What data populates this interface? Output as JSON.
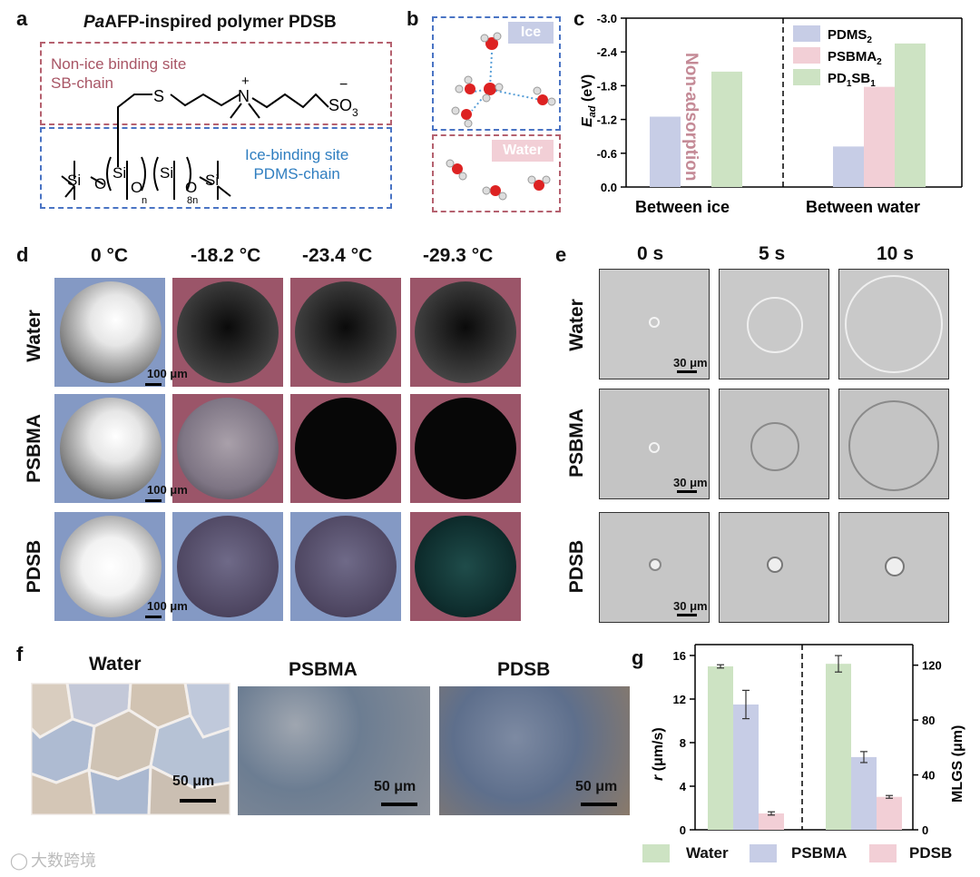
{
  "panels": {
    "a": {
      "label": "a",
      "title_italic": "Pa",
      "title_rest": "AFP-inspired polymer PDSB",
      "top_box": [
        "Non-ice binding site",
        "SB-chain"
      ],
      "bottom_box": [
        "Ice-binding site",
        "PDMS-chain"
      ],
      "chem": {
        "S": "S",
        "N": "N",
        "plus": "+",
        "SO3": "SO",
        "SO3_sub": "3",
        "minus": "−",
        "Si": "Si",
        "O": "O",
        "n": "n",
        "8n": "8n"
      }
    },
    "b": {
      "label": "b",
      "ice": "Ice",
      "water": "Water"
    },
    "c": {
      "label": "c",
      "non_adsorption": "Non-adsorption"
    },
    "d": {
      "label": "d",
      "columns": [
        "0 °C",
        "-18.2 °C",
        "-23.4 °C",
        "-29.3 °C"
      ],
      "rows": [
        "Water",
        "PSBMA",
        "PDSB"
      ],
      "scale": "100 μm"
    },
    "e": {
      "label": "e",
      "columns": [
        "0 s",
        "5 s",
        "10 s"
      ],
      "rows": [
        "Water",
        "PSBMA",
        "PDSB"
      ],
      "scale": "30 μm"
    },
    "f": {
      "label": "f",
      "titles": [
        "Water",
        "PSBMA",
        "PDSB"
      ],
      "scale": "50 μm"
    },
    "g": {
      "label": "g"
    }
  },
  "chart_data": [
    {
      "type": "bar",
      "panel": "c",
      "groups": [
        "Between ice",
        "Between water"
      ],
      "series": [
        {
          "name": "PDMS2",
          "color": "#c7cde6",
          "values": [
            -1.25,
            -0.72
          ]
        },
        {
          "name": "PSBMA2",
          "color": "#f2cfd6",
          "values": [
            null,
            -1.78
          ]
        },
        {
          "name": "PD1SB1",
          "color": "#cde3c3",
          "values": [
            -2.05,
            -2.55
          ]
        }
      ],
      "ylabel_main": "E",
      "ylabel_sub": "ad",
      "ylabel_unit": " (eV)",
      "ylim": [
        0,
        -3.0
      ],
      "yticks": [
        "0.0",
        "-0.6",
        "-1.2",
        "-1.8",
        "-2.4",
        "-3.0"
      ],
      "legend": [
        {
          "main": "PDMS",
          "sub": "2",
          "color": "#c7cde6"
        },
        {
          "main": "PSBMA",
          "sub": "2",
          "color": "#f2cfd6"
        },
        {
          "main": "PD",
          "sub": "1",
          "main2": "SB",
          "sub2": "1",
          "color": "#cde3c3"
        }
      ]
    },
    {
      "type": "bar",
      "panel": "g",
      "series": [
        {
          "name": "Water",
          "color": "#cde3c3"
        },
        {
          "name": "PSBMA",
          "color": "#c7cde6"
        },
        {
          "name": "PDSB",
          "color": "#f2cfd6"
        }
      ],
      "left": {
        "ylabel_main": "r",
        "ylabel_unit": " (μm/s)",
        "ylim": [
          0,
          17
        ],
        "yticks": [
          "0",
          "4",
          "8",
          "12",
          "16"
        ],
        "values": [
          15.0,
          11.5,
          1.5
        ],
        "errors": [
          0.15,
          1.3,
          0.15
        ]
      },
      "right": {
        "ylabel": "MLGS (μm)",
        "ylim": [
          0,
          135
        ],
        "yticks": [
          "0",
          "40",
          "80",
          "120"
        ],
        "values": [
          121,
          53,
          24
        ],
        "errors": [
          6,
          4,
          1
        ]
      },
      "legend": [
        "Water",
        "PSBMA",
        "PDSB"
      ]
    }
  ],
  "watermark": "大数跨境"
}
